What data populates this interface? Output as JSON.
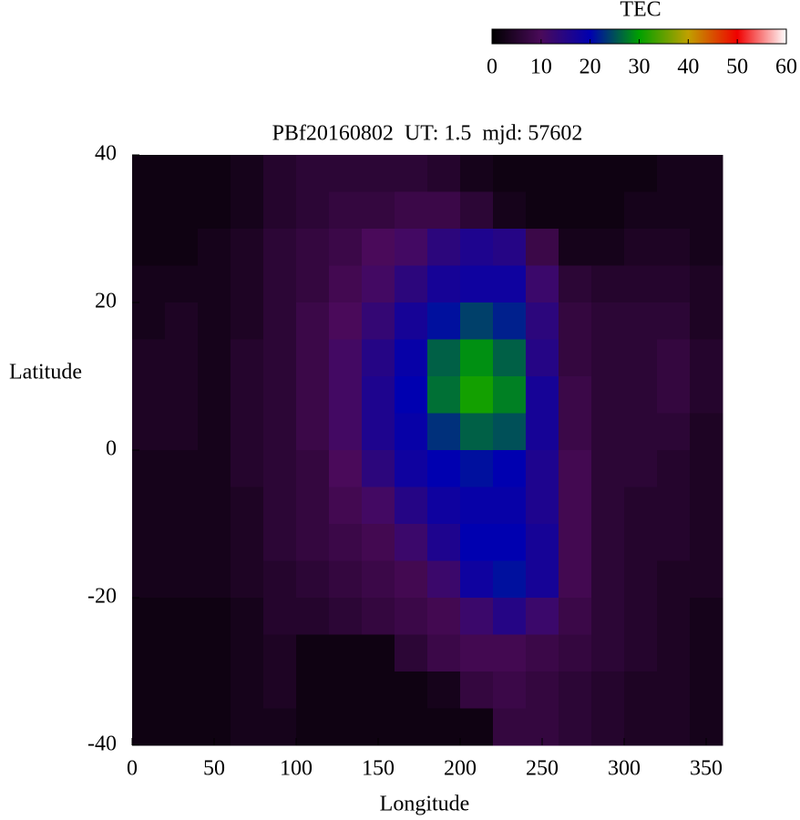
{
  "chart_data": {
    "type": "heatmap",
    "title": "PBf20160802  UT: 1.5  mjd: 57602",
    "xlabel": "Longitude",
    "ylabel": "Latitude",
    "xlim": [
      0,
      360
    ],
    "xticks": [
      0,
      50,
      100,
      150,
      200,
      250,
      300,
      350
    ],
    "ylim": [
      -40,
      40
    ],
    "yticks": [
      -40,
      -20,
      0,
      20,
      40
    ],
    "xbins": [
      0,
      20,
      40,
      60,
      80,
      100,
      120,
      140,
      160,
      180,
      200,
      220,
      240,
      260,
      280,
      300,
      320,
      340,
      360
    ],
    "ybins": [
      40,
      35,
      30,
      25,
      20,
      15,
      10,
      5,
      0,
      -5,
      -10,
      -15,
      -20,
      -25,
      -30,
      -35,
      -40
    ],
    "values": [
      [
        2,
        2,
        2,
        3,
        5,
        6,
        6,
        6,
        6,
        5,
        3,
        2,
        2,
        2,
        2,
        2,
        3,
        3
      ],
      [
        2,
        2,
        2,
        3,
        5,
        6,
        7,
        7,
        8,
        8,
        6,
        3,
        2,
        2,
        2,
        3,
        3,
        3
      ],
      [
        2,
        2,
        3,
        4,
        6,
        7,
        8,
        10,
        11,
        14,
        16,
        15,
        8,
        3,
        3,
        4,
        4,
        3
      ],
      [
        3,
        3,
        3,
        4,
        6,
        7,
        9,
        11,
        14,
        17,
        18,
        18,
        12,
        6,
        5,
        5,
        5,
        4
      ],
      [
        3,
        4,
        3,
        4,
        6,
        8,
        10,
        13,
        17,
        21,
        24,
        22,
        14,
        7,
        6,
        6,
        6,
        4
      ],
      [
        4,
        4,
        3,
        5,
        6,
        8,
        11,
        15,
        19,
        26,
        29,
        26,
        15,
        7,
        6,
        6,
        7,
        5
      ],
      [
        4,
        4,
        3,
        5,
        6,
        8,
        11,
        16,
        20,
        27,
        31,
        28,
        17,
        8,
        6,
        6,
        7,
        5
      ],
      [
        4,
        4,
        3,
        5,
        6,
        8,
        11,
        16,
        19,
        23,
        26,
        25,
        17,
        8,
        6,
        6,
        6,
        4
      ],
      [
        3,
        3,
        3,
        5,
        6,
        7,
        10,
        14,
        18,
        20,
        21,
        20,
        16,
        9,
        6,
        6,
        5,
        4
      ],
      [
        3,
        3,
        3,
        4,
        6,
        7,
        9,
        11,
        15,
        18,
        19,
        19,
        16,
        9,
        6,
        5,
        5,
        4
      ],
      [
        3,
        3,
        3,
        4,
        6,
        7,
        8,
        9,
        12,
        16,
        20,
        20,
        17,
        9,
        6,
        5,
        5,
        4
      ],
      [
        3,
        3,
        3,
        4,
        5,
        6,
        7,
        8,
        9,
        12,
        18,
        21,
        17,
        9,
        6,
        5,
        4,
        4
      ],
      [
        2,
        2,
        2,
        3,
        5,
        5,
        6,
        7,
        8,
        9,
        12,
        15,
        12,
        8,
        6,
        5,
        4,
        3
      ],
      [
        2,
        2,
        2,
        3,
        4,
        2,
        2,
        2,
        6,
        8,
        9,
        9,
        8,
        7,
        6,
        5,
        4,
        3
      ],
      [
        2,
        2,
        2,
        3,
        4,
        2,
        2,
        2,
        2,
        3,
        7,
        8,
        7,
        6,
        5,
        4,
        4,
        3
      ],
      [
        2,
        2,
        2,
        3,
        3,
        2,
        2,
        2,
        2,
        2,
        2,
        7,
        7,
        6,
        5,
        4,
        4,
        3
      ]
    ],
    "colorbar": {
      "label": "TEC",
      "lim": [
        0,
        60
      ],
      "ticks": [
        0,
        10,
        20,
        30,
        40,
        50,
        60
      ],
      "colors": [
        "#000000",
        "#4a0a5a",
        "#0000b0",
        "#00a000",
        "#c0a000",
        "#f00000",
        "#ffffff"
      ]
    }
  }
}
